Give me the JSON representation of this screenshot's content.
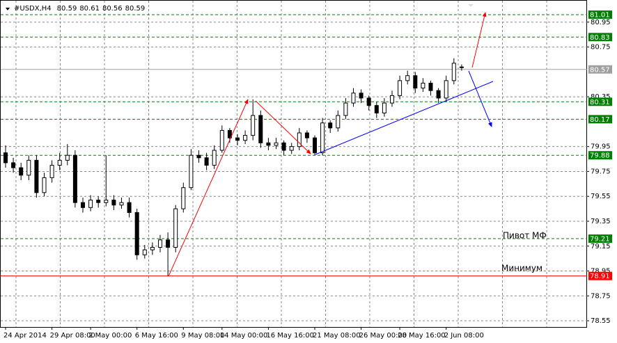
{
  "chart_data": {
    "type": "candlestick",
    "symbol": "#USDX,H4",
    "header_values": [
      80.59,
      80.61,
      80.56,
      80.59
    ],
    "categories": [
      "24 Apr 2014",
      null,
      null,
      null,
      null,
      null,
      "29 Apr 08:00",
      null,
      null,
      null,
      null,
      "2 May 00:00",
      null,
      null,
      null,
      null,
      null,
      "6 May 16:00",
      null,
      null,
      null,
      null,
      null,
      "9 May 08:00",
      null,
      null,
      null,
      null,
      "14 May 00:00",
      null,
      null,
      null,
      null,
      null,
      "16 May 16:00",
      null,
      null,
      null,
      null,
      null,
      "21 May 08:00",
      null,
      null,
      null,
      null,
      null,
      "26 May 00:00",
      null,
      null,
      null,
      null,
      "28 May 16:00",
      null,
      null,
      null,
      null,
      null,
      "2 Jun 08:00",
      null,
      null
    ],
    "open": [
      79.9,
      79.82,
      79.78,
      79.72,
      79.84,
      79.58,
      79.7,
      79.8,
      79.84,
      79.88,
      79.5,
      79.46,
      79.52,
      79.5,
      79.52,
      79.48,
      79.5,
      79.42,
      79.08,
      79.12,
      79.14,
      79.2,
      79.14,
      79.45,
      79.62,
      79.88,
      79.86,
      79.8,
      79.92,
      80.08,
      80.02,
      80.0,
      80.04,
      80.2,
      79.98,
      79.96,
      79.98,
      79.92,
      79.95,
      80.06,
      80.02,
      79.9,
      80.14,
      80.1,
      80.2,
      80.3,
      80.38,
      80.34,
      80.28,
      80.22,
      80.3,
      80.36,
      80.48,
      80.52,
      80.42,
      80.46,
      80.4,
      80.34,
      80.48,
      80.59
    ],
    "high": [
      79.96,
      79.86,
      79.82,
      79.88,
      79.88,
      79.74,
      79.84,
      79.9,
      79.97,
      79.92,
      79.54,
      79.56,
      79.55,
      79.88,
      79.56,
      79.54,
      79.54,
      79.45,
      79.16,
      79.18,
      79.24,
      79.26,
      79.48,
      79.66,
      79.93,
      79.92,
      79.9,
      79.96,
      80.12,
      80.1,
      80.05,
      80.08,
      80.33,
      80.24,
      80.02,
      80.02,
      80.0,
      79.98,
      80.1,
      80.08,
      80.04,
      80.18,
      80.16,
      80.24,
      80.34,
      80.42,
      80.41,
      80.36,
      80.31,
      80.34,
      80.4,
      80.52,
      80.56,
      80.55,
      80.5,
      80.48,
      80.42,
      80.52,
      80.66,
      80.61
    ],
    "low": [
      79.78,
      79.74,
      79.68,
      79.68,
      79.54,
      79.55,
      79.66,
      79.76,
      79.8,
      79.46,
      79.42,
      79.43,
      79.46,
      79.47,
      79.44,
      79.45,
      79.38,
      79.04,
      79.05,
      79.08,
      79.1,
      78.91,
      79.1,
      79.42,
      79.6,
      79.82,
      79.76,
      79.77,
      79.9,
      79.98,
      79.96,
      79.97,
      80.0,
      79.94,
      79.92,
      79.93,
      79.88,
      79.89,
      79.92,
      79.98,
      79.88,
      79.88,
      80.06,
      80.07,
      80.17,
      80.27,
      80.3,
      80.24,
      80.18,
      80.19,
      80.27,
      80.33,
      80.45,
      80.38,
      80.39,
      80.36,
      80.3,
      80.31,
      80.45,
      80.56
    ],
    "close": [
      79.82,
      79.78,
      79.72,
      79.84,
      79.58,
      79.7,
      79.8,
      79.84,
      79.88,
      79.5,
      79.46,
      79.52,
      79.5,
      79.52,
      79.48,
      79.5,
      79.42,
      79.08,
      79.12,
      79.14,
      79.2,
      79.14,
      79.45,
      79.62,
      79.88,
      79.86,
      79.8,
      79.92,
      80.08,
      80.02,
      80.0,
      80.04,
      80.2,
      79.98,
      79.96,
      79.98,
      79.92,
      79.95,
      80.06,
      80.02,
      79.9,
      80.14,
      80.1,
      80.2,
      80.3,
      80.38,
      80.34,
      80.28,
      80.22,
      80.3,
      80.36,
      80.48,
      80.52,
      80.42,
      80.46,
      80.4,
      80.34,
      80.48,
      80.62,
      80.59
    ],
    "ylim": [
      78.5,
      81.1
    ],
    "yticks": [
      80.95,
      80.75,
      80.35,
      79.95,
      79.75,
      79.55,
      79.35,
      79.15,
      78.95,
      78.75,
      78.55
    ],
    "grid": true,
    "levels": [
      {
        "value": 81.01,
        "color": "#008000"
      },
      {
        "value": 80.83,
        "color": "#008000"
      },
      {
        "value": 80.57,
        "color": "#a0a0a0"
      },
      {
        "value": 80.31,
        "color": "#008000"
      },
      {
        "value": 80.17,
        "color": "#008000"
      },
      {
        "value": 79.88,
        "color": "#008000"
      },
      {
        "value": 79.21,
        "color": "#008000"
      },
      {
        "value": 78.91,
        "color": "#ff0000"
      }
    ],
    "annotations": [
      "Пивот МФ",
      "Минимум"
    ]
  }
}
